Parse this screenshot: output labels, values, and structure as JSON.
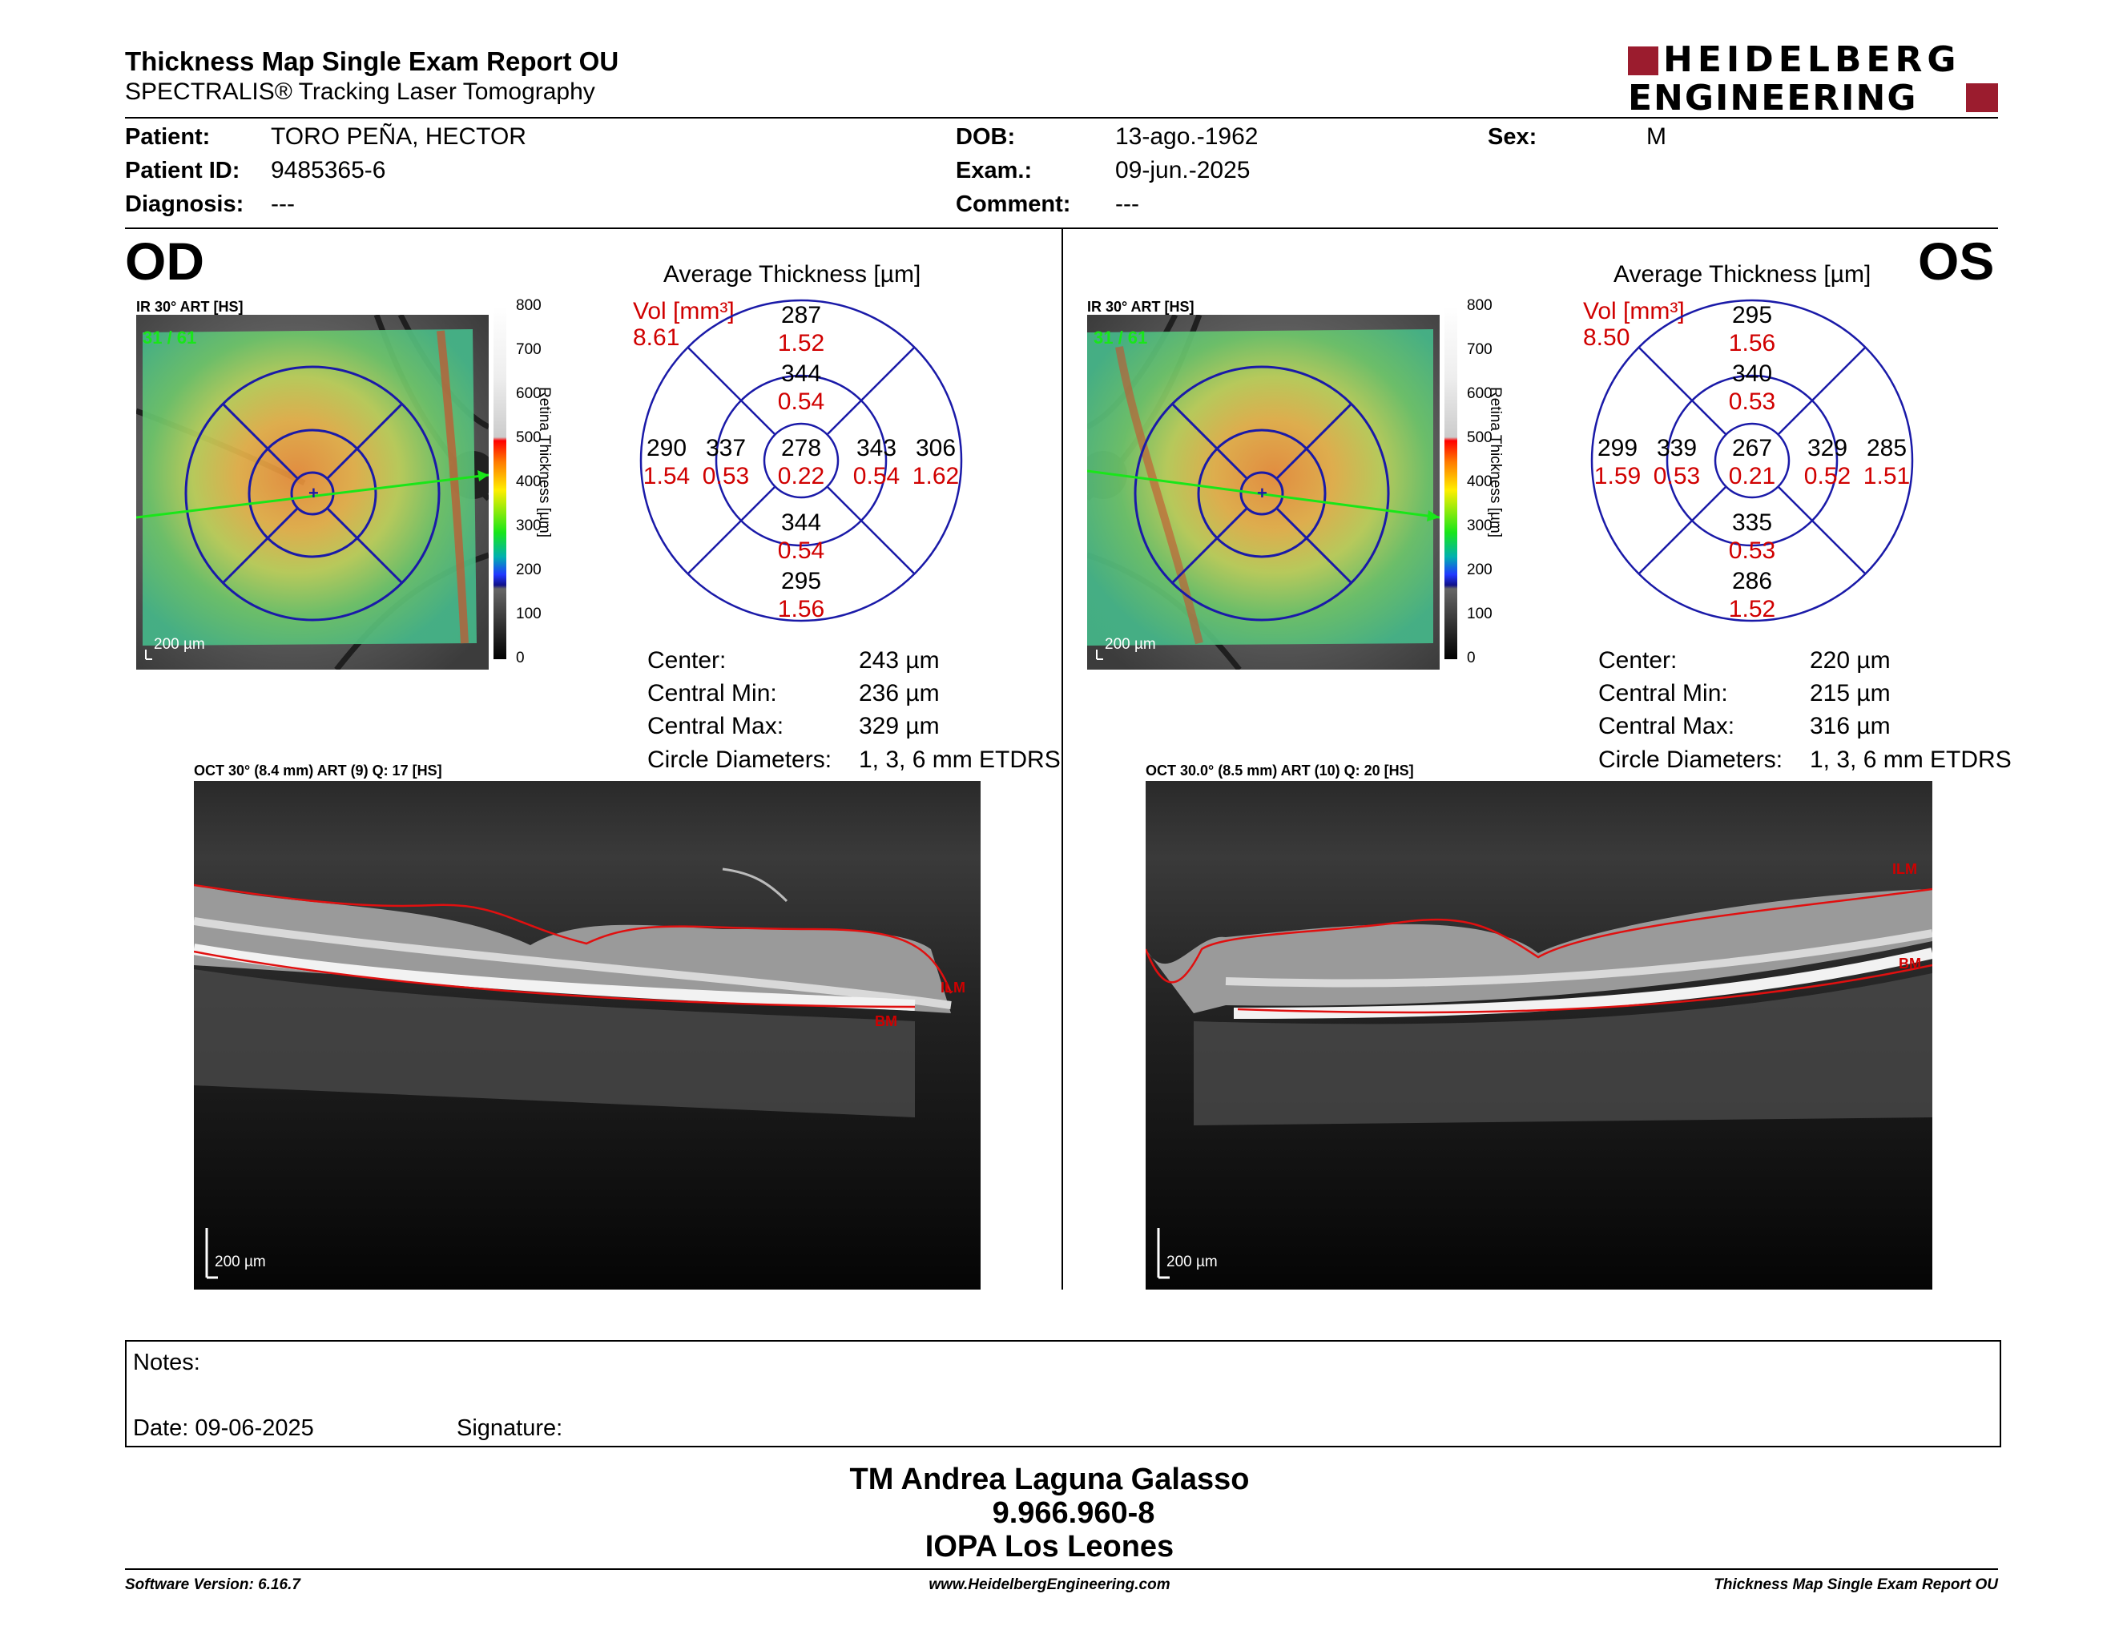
{
  "header": {
    "title": "Thickness Map Single Exam Report OU",
    "subtitle": "SPECTRALIS® Tracking Laser Tomography",
    "logo_line1": "HEIDELBERG",
    "logo_line2": "ENGINEERING"
  },
  "patient": {
    "patient_label": "Patient:",
    "patient_value": "TORO PEÑA, HECTOR",
    "id_label": "Patient ID:",
    "id_value": "9485365-6",
    "diagnosis_label": "Diagnosis:",
    "diagnosis_value": "---",
    "dob_label": "DOB:",
    "dob_value": "13-ago.-1962",
    "exam_label": "Exam.:",
    "exam_value": "09-jun.-2025",
    "comment_label": "Comment:",
    "comment_value": "---",
    "sex_label": "Sex:",
    "sex_value": "M"
  },
  "colorbar": {
    "ticks": [
      "800",
      "700",
      "600",
      "500",
      "400",
      "300",
      "200",
      "100",
      "0"
    ],
    "label": "Retina Thickness [µm]"
  },
  "od": {
    "eye": "OD",
    "ir_label": "IR 30° ART [HS]",
    "ir_overlay": "31 / 61",
    "scale": "200 µm",
    "chart_title": "Average Thickness [µm]",
    "vol_label": "Vol [mm³]",
    "vol_value": "8.61",
    "sectors": {
      "sup_outer": [
        "287",
        "1.52"
      ],
      "sup_inner": [
        "344",
        "0.54"
      ],
      "temp_outer": [
        "290",
        "1.54"
      ],
      "temp_inner": [
        "337",
        "0.53"
      ],
      "center": [
        "278",
        "0.22"
      ],
      "nas_inner": [
        "343",
        "0.54"
      ],
      "nas_outer": [
        "306",
        "1.62"
      ],
      "inf_inner": [
        "344",
        "0.54"
      ],
      "inf_outer": [
        "295",
        "1.56"
      ]
    },
    "stats": [
      {
        "label": "Center:",
        "value": "243 µm"
      },
      {
        "label": "Central Min:",
        "value": "236 µm"
      },
      {
        "label": "Central Max:",
        "value": "329 µm"
      },
      {
        "label": "Circle Diameters:",
        "value": "1, 3, 6 mm ETDRS"
      }
    ],
    "oct_label": "OCT 30° (8.4 mm) ART (9) Q: 17 [HS]",
    "ilm": "ILM",
    "bm": "BM"
  },
  "os": {
    "eye": "OS",
    "ir_label": "IR 30° ART [HS]",
    "ir_overlay": "31 / 61",
    "scale": "200 µm",
    "chart_title": "Average Thickness [µm]",
    "vol_label": "Vol [mm³]",
    "vol_value": "8.50",
    "sectors": {
      "sup_outer": [
        "295",
        "1.56"
      ],
      "sup_inner": [
        "340",
        "0.53"
      ],
      "temp_outer": [
        "299",
        "1.59"
      ],
      "temp_inner": [
        "339",
        "0.53"
      ],
      "center": [
        "267",
        "0.21"
      ],
      "nas_inner": [
        "329",
        "0.52"
      ],
      "nas_outer": [
        "285",
        "1.51"
      ],
      "inf_inner": [
        "335",
        "0.53"
      ],
      "inf_outer": [
        "286",
        "1.52"
      ]
    },
    "stats": [
      {
        "label": "Center:",
        "value": "220 µm"
      },
      {
        "label": "Central Min:",
        "value": "215 µm"
      },
      {
        "label": "Central Max:",
        "value": "316 µm"
      },
      {
        "label": "Circle Diameters:",
        "value": "1, 3, 6 mm ETDRS"
      }
    ],
    "oct_label": "OCT 30.0° (8.5 mm) ART (10) Q: 20 [HS]",
    "ilm": "ILM",
    "bm": "BM"
  },
  "notes": {
    "notes_label": "Notes:",
    "date_label": "Date: 09-06-2025",
    "signature_label": "Signature:"
  },
  "signer": {
    "name": "TM Andrea Laguna Galasso",
    "id": "9.966.960-8",
    "institution": "IOPA Los Leones"
  },
  "footer": {
    "version": "Software Version: 6.16.7",
    "website": "www.HeidelbergEngineering.com",
    "report": "Thickness Map Single Exam Report OU"
  },
  "colors": {
    "accent_red": "#d00000",
    "logo_red": "#9b1c2e",
    "grid_blue": "#1a1aa8"
  }
}
